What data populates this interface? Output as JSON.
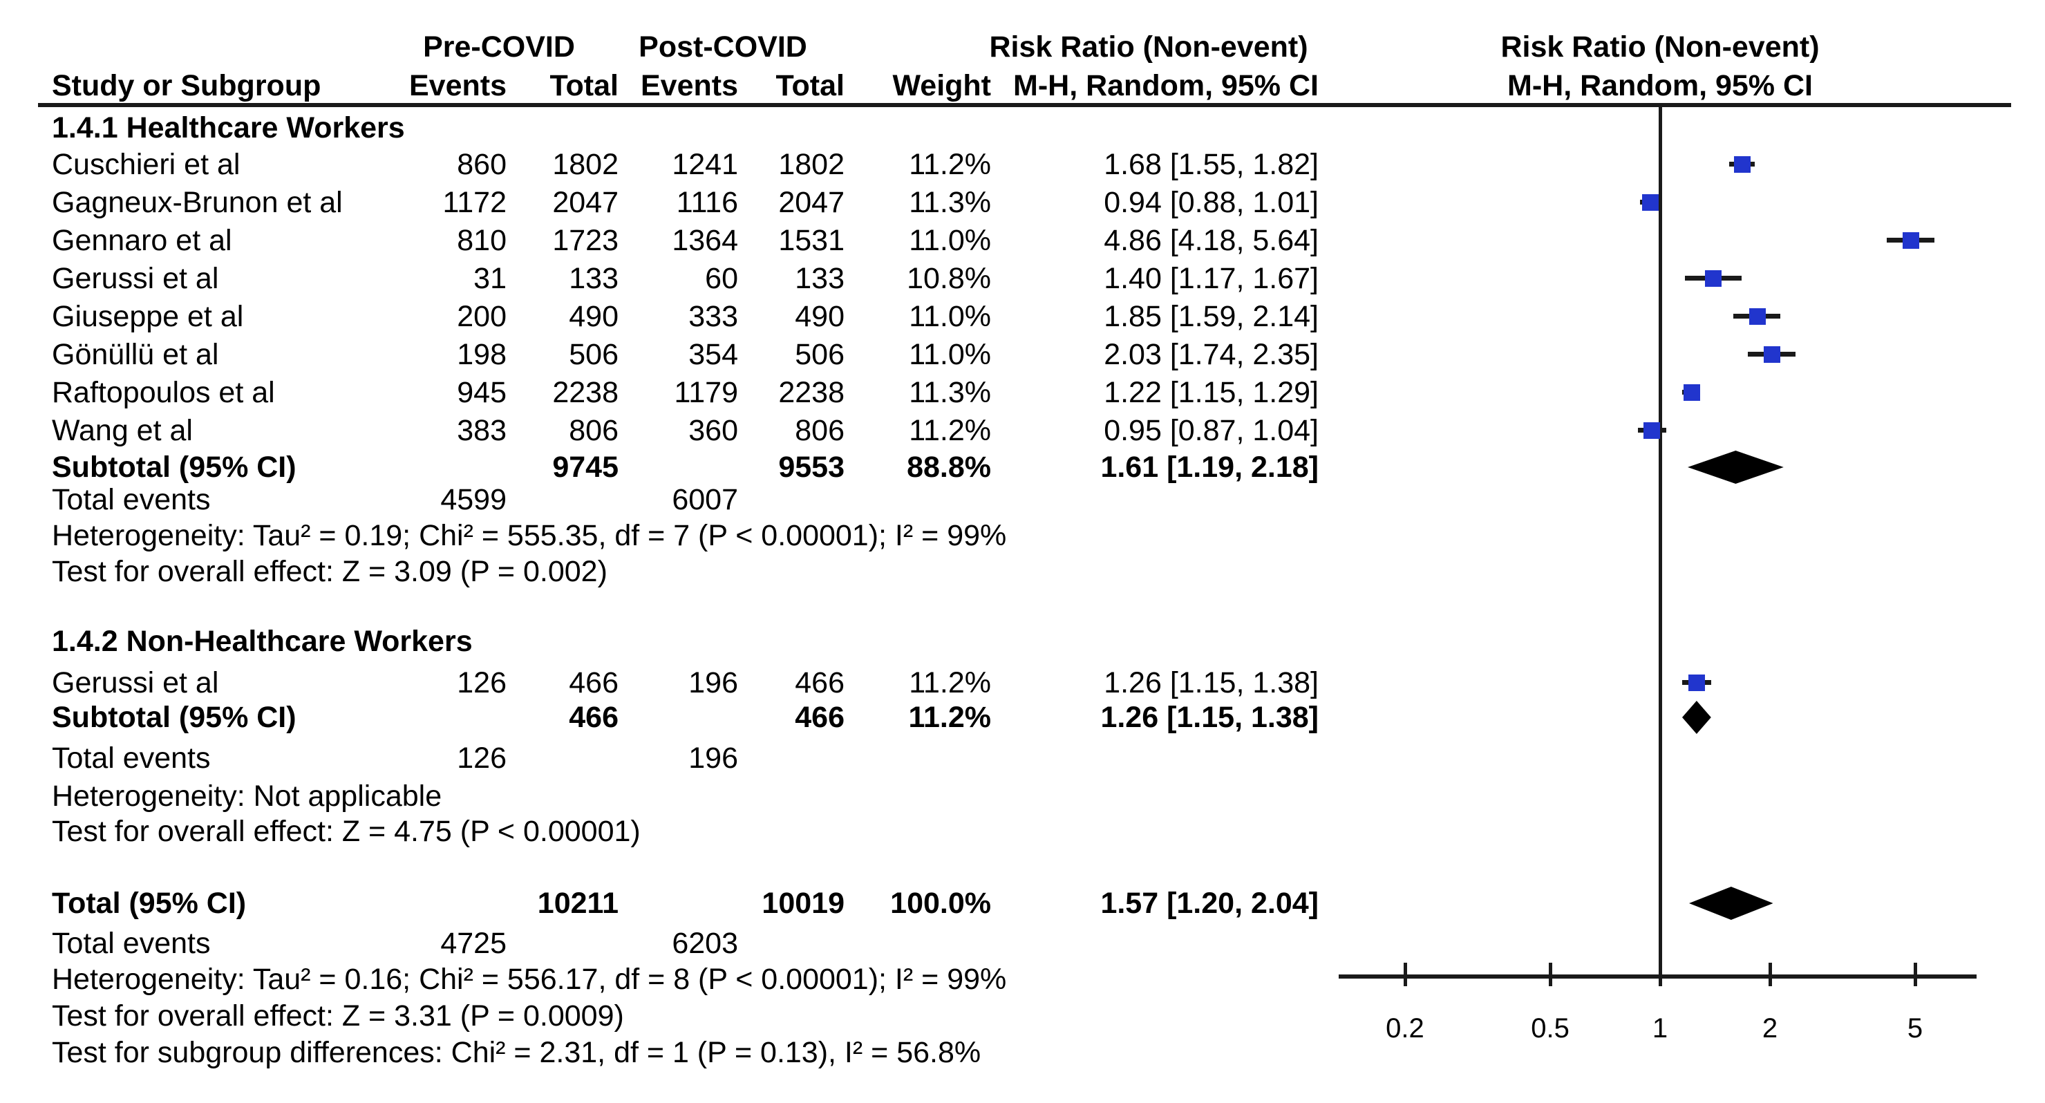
{
  "header": {
    "group1_label": "Pre-COVID",
    "group2_label": "Post-COVID",
    "effect_label_left": "Risk Ratio (Non-event)",
    "effect_sub_left": "M-H, Random, 95% CI",
    "effect_label_right": "Risk Ratio (Non-event)",
    "effect_sub_right": "M-H, Random, 95% CI",
    "col_study": "Study or Subgroup",
    "col_events_pre": "Events",
    "col_total_pre": "Total",
    "col_events_post": "Events",
    "col_total_post": "Total",
    "col_weight": "Weight"
  },
  "sections": [
    {
      "title": "1.4.1 Healthcare Workers",
      "studies": [
        {
          "study": "Cuschieri et al",
          "events1": "860",
          "total1": "1802",
          "events2": "1241",
          "total2": "1802",
          "weight": "11.2%",
          "ci_text": "1.68 [1.55, 1.82]",
          "rr": 1.68,
          "lo": 1.55,
          "hi": 1.82
        },
        {
          "study": "Gagneux-Brunon et al",
          "events1": "1172",
          "total1": "2047",
          "events2": "1116",
          "total2": "2047",
          "weight": "11.3%",
          "ci_text": "0.94 [0.88, 1.01]",
          "rr": 0.94,
          "lo": 0.88,
          "hi": 1.01
        },
        {
          "study": "Gennaro et al",
          "events1": "810",
          "total1": "1723",
          "events2": "1364",
          "total2": "1531",
          "weight": "11.0%",
          "ci_text": "4.86 [4.18, 5.64]",
          "rr": 4.86,
          "lo": 4.18,
          "hi": 5.64
        },
        {
          "study": "Gerussi et al",
          "events1": "31",
          "total1": "133",
          "events2": "60",
          "total2": "133",
          "weight": "10.8%",
          "ci_text": "1.40 [1.17, 1.67]",
          "rr": 1.4,
          "lo": 1.17,
          "hi": 1.67
        },
        {
          "study": "Giuseppe et al",
          "events1": "200",
          "total1": "490",
          "events2": "333",
          "total2": "490",
          "weight": "11.0%",
          "ci_text": "1.85 [1.59, 2.14]",
          "rr": 1.85,
          "lo": 1.59,
          "hi": 2.14
        },
        {
          "study": "Gönüllü et al",
          "events1": "198",
          "total1": "506",
          "events2": "354",
          "total2": "506",
          "weight": "11.0%",
          "ci_text": "2.03 [1.74, 2.35]",
          "rr": 2.03,
          "lo": 1.74,
          "hi": 2.35
        },
        {
          "study": "Raftopoulos et al",
          "events1": "945",
          "total1": "2238",
          "events2": "1179",
          "total2": "2238",
          "weight": "11.3%",
          "ci_text": "1.22 [1.15, 1.29]",
          "rr": 1.22,
          "lo": 1.15,
          "hi": 1.29
        },
        {
          "study": "Wang et al",
          "events1": "383",
          "total1": "806",
          "events2": "360",
          "total2": "806",
          "weight": "11.2%",
          "ci_text": "0.95 [0.87, 1.04]",
          "rr": 0.95,
          "lo": 0.87,
          "hi": 1.04
        }
      ],
      "subtotal": {
        "label": "Subtotal (95% CI)",
        "total1": "9745",
        "total2": "9553",
        "weight": "88.8%",
        "ci_text": "1.61 [1.19, 2.18]",
        "rr": 1.61,
        "lo": 1.19,
        "hi": 2.18
      },
      "total_events": {
        "label": "Total events",
        "events1": "4599",
        "events2": "6007"
      },
      "heterogeneity": "Heterogeneity: Tau² = 0.19; Chi² = 555.35, df = 7 (P < 0.00001); I² = 99%",
      "overall_effect": "Test for overall effect: Z = 3.09 (P = 0.002)"
    },
    {
      "title": "1.4.2 Non-Healthcare Workers",
      "studies": [
        {
          "study": "Gerussi et al",
          "events1": "126",
          "total1": "466",
          "events2": "196",
          "total2": "466",
          "weight": "11.2%",
          "ci_text": "1.26 [1.15, 1.38]",
          "rr": 1.26,
          "lo": 1.15,
          "hi": 1.38
        }
      ],
      "subtotal": {
        "label": "Subtotal (95% CI)",
        "total1": "466",
        "total2": "466",
        "weight": "11.2%",
        "ci_text": "1.26 [1.15, 1.38]",
        "rr": 1.26,
        "lo": 1.15,
        "hi": 1.38
      },
      "total_events": {
        "label": "Total events",
        "events1": "126",
        "events2": "196"
      },
      "heterogeneity": "Heterogeneity: Not applicable",
      "overall_effect": "Test for overall effect: Z = 4.75 (P < 0.00001)"
    }
  ],
  "total": {
    "label": "Total (95% CI)",
    "total1": "10211",
    "total2": "10019",
    "weight": "100.0%",
    "ci_text": "1.57 [1.20, 2.04]",
    "rr": 1.57,
    "lo": 1.2,
    "hi": 2.04,
    "total_events": {
      "label": "Total events",
      "events1": "4725",
      "events2": "6203"
    },
    "heterogeneity": "Heterogeneity: Tau² = 0.16; Chi² = 556.17, df = 8 (P < 0.00001); I² = 99%",
    "overall_effect": "Test for overall effect: Z = 3.31 (P = 0.0009)",
    "subgroup_diff": "Test for subgroup differences: Chi² = 2.31, df = 1 (P = 0.13), I² = 56.8%"
  },
  "chart_data": {
    "type": "forest",
    "x_scale": "log",
    "axis_ticks": [
      "0.2",
      "0.5",
      "1",
      "2",
      "5"
    ],
    "null_line_at": 1,
    "effect_measure": "Risk Ratio (Non-event), M-H, Random, 95% CI",
    "points": [
      {
        "label": "Cuschieri et al",
        "marker": "square",
        "rr": 1.68,
        "ci": [
          1.55,
          1.82
        ],
        "weight_pct": 11.2
      },
      {
        "label": "Gagneux-Brunon et al",
        "marker": "square",
        "rr": 0.94,
        "ci": [
          0.88,
          1.01
        ],
        "weight_pct": 11.3
      },
      {
        "label": "Gennaro et al",
        "marker": "square",
        "rr": 4.86,
        "ci": [
          4.18,
          5.64
        ],
        "weight_pct": 11.0
      },
      {
        "label": "Gerussi et al",
        "marker": "square",
        "rr": 1.4,
        "ci": [
          1.17,
          1.67
        ],
        "weight_pct": 10.8
      },
      {
        "label": "Giuseppe et al",
        "marker": "square",
        "rr": 1.85,
        "ci": [
          1.59,
          2.14
        ],
        "weight_pct": 11.0
      },
      {
        "label": "Gönüllü et al",
        "marker": "square",
        "rr": 2.03,
        "ci": [
          1.74,
          2.35
        ],
        "weight_pct": 11.0
      },
      {
        "label": "Raftopoulos et al",
        "marker": "square",
        "rr": 1.22,
        "ci": [
          1.15,
          1.29
        ],
        "weight_pct": 11.3
      },
      {
        "label": "Wang et al",
        "marker": "square",
        "rr": 0.95,
        "ci": [
          0.87,
          1.04
        ],
        "weight_pct": 11.2
      },
      {
        "label": "Subtotal 1.4.1 (95% CI)",
        "marker": "diamond",
        "rr": 1.61,
        "ci": [
          1.19,
          2.18
        ],
        "weight_pct": 88.8
      },
      {
        "label": "Gerussi et al (Non-Healthcare)",
        "marker": "square",
        "rr": 1.26,
        "ci": [
          1.15,
          1.38
        ],
        "weight_pct": 11.2
      },
      {
        "label": "Subtotal 1.4.2 (95% CI)",
        "marker": "diamond",
        "rr": 1.26,
        "ci": [
          1.15,
          1.38
        ],
        "weight_pct": 11.2
      },
      {
        "label": "Total (95% CI)",
        "marker": "diamond",
        "rr": 1.57,
        "ci": [
          1.2,
          2.04
        ],
        "weight_pct": 100.0
      }
    ]
  },
  "colors": {
    "marker_blue": "#2135cd",
    "line_black": "#1a1a1a",
    "diamond_black": "#000000"
  }
}
